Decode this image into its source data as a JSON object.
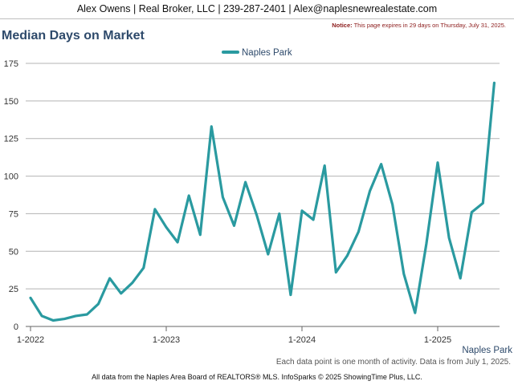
{
  "header": {
    "agent_line": "Alex Owens | Real Broker, LLC | 239-287-2401 | Alex@naplesnewrealestate.com",
    "notice_label": "Notice:",
    "notice_text": "This page expires in 29 days on Thursday, July 31, 2025."
  },
  "footer": {
    "note": "Each data point is one month of activity. Data is from July 1, 2025.",
    "credit": "All data from the Naples Area Board of REALTORS® MLS. InfoSparks © 2025 ShowingTime Plus, LLC."
  },
  "colors": {
    "series": "#2a9aa0",
    "title": "#2e4a6b",
    "grid": "#b3b3b3"
  },
  "chart_data": {
    "type": "line",
    "title": "Median Days on Market",
    "xlabel": "",
    "ylabel": "",
    "ylim": [
      0,
      175
    ],
    "yticks": [
      0,
      25,
      50,
      75,
      100,
      125,
      150,
      175
    ],
    "xtick_labels": [
      "1-2022",
      "1-2023",
      "1-2024",
      "1-2025"
    ],
    "xtick_months": [
      "2022-01",
      "2023-01",
      "2024-01",
      "2025-01"
    ],
    "legend_position": "top-center",
    "grid": true,
    "end_label": "Naples Park",
    "series": [
      {
        "name": "Naples Park",
        "months": [
          "2022-01",
          "2022-02",
          "2022-03",
          "2022-04",
          "2022-05",
          "2022-06",
          "2022-07",
          "2022-08",
          "2022-09",
          "2022-10",
          "2022-11",
          "2022-12",
          "2023-01",
          "2023-02",
          "2023-03",
          "2023-04",
          "2023-05",
          "2023-06",
          "2023-07",
          "2023-08",
          "2023-09",
          "2023-10",
          "2023-11",
          "2023-12",
          "2024-01",
          "2024-02",
          "2024-03",
          "2024-04",
          "2024-05",
          "2024-06",
          "2024-07",
          "2024-08",
          "2024-09",
          "2024-10",
          "2024-11",
          "2024-12",
          "2025-01",
          "2025-02",
          "2025-03",
          "2025-04",
          "2025-05",
          "2025-06"
        ],
        "values": [
          19,
          7,
          4,
          5,
          7,
          8,
          15,
          32,
          22,
          29,
          39,
          78,
          66,
          56,
          87,
          61,
          133,
          86,
          67,
          96,
          74,
          48,
          75,
          21,
          77,
          71,
          107,
          36,
          47,
          63,
          90,
          108,
          81,
          35,
          9,
          55,
          109,
          59,
          32,
          76,
          82,
          162
        ]
      }
    ]
  }
}
